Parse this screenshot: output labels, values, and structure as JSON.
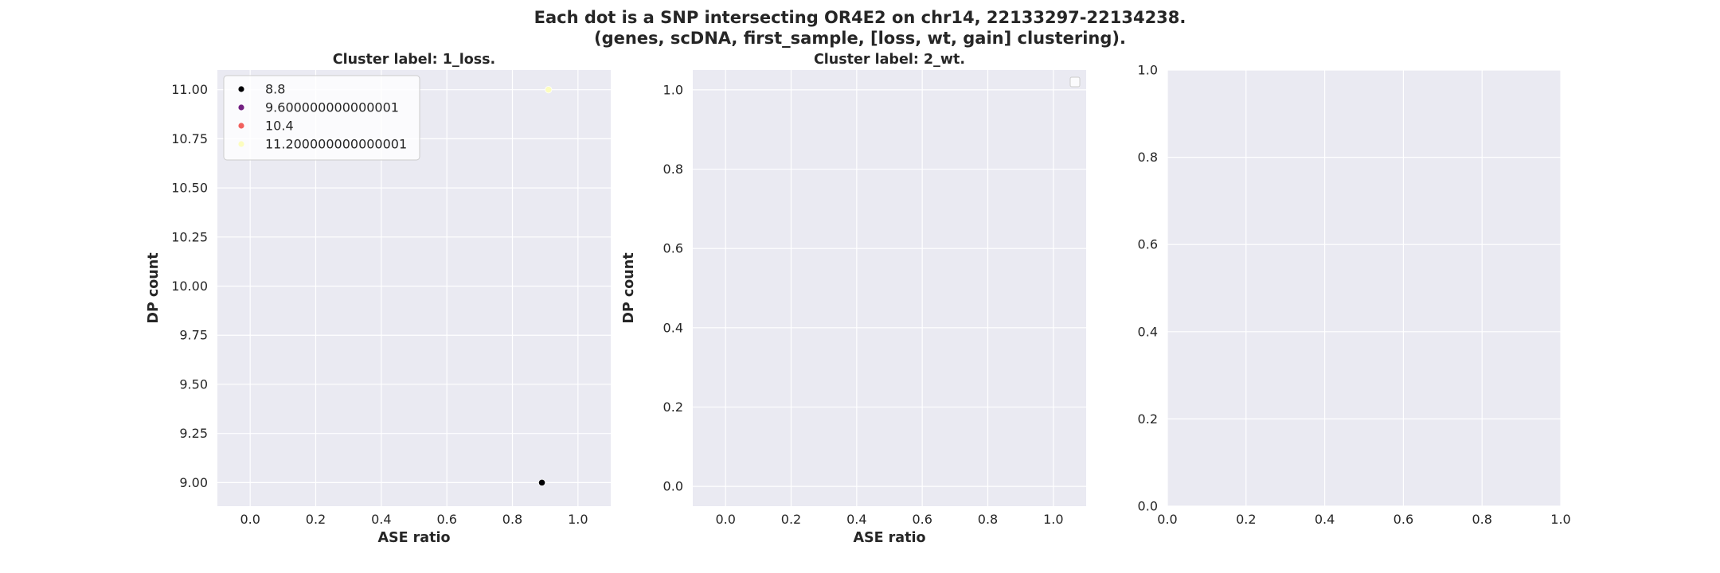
{
  "suptitle": {
    "line1": "Each dot is a SNP intersecting OR4E2 on chr14, 22133297-22134238.",
    "line2": "(genes, scDNA, first_sample, [loss, wt, gain] clustering)."
  },
  "colors": {
    "background": "#eaeaf2",
    "grid": "#ffffff",
    "text": "#262626"
  },
  "chart_data": [
    {
      "type": "scatter",
      "title": "Cluster label: 1_loss.",
      "xlabel": "ASE ratio",
      "ylabel": "DP count",
      "xlim": [
        -0.1,
        1.1
      ],
      "ylim": [
        8.88,
        11.1
      ],
      "xticks": [
        "0.0",
        "0.2",
        "0.4",
        "0.6",
        "0.8",
        "1.0"
      ],
      "yticks": [
        "9.00",
        "9.25",
        "9.50",
        "9.75",
        "10.00",
        "10.25",
        "10.50",
        "10.75",
        "11.00"
      ],
      "grid": true,
      "legend": {
        "placement": "upper left",
        "entries": [
          {
            "label": "8.8",
            "color": "#000004"
          },
          {
            "label": "9.600000000000001",
            "color": "#721f81"
          },
          {
            "label": "10.4",
            "color": "#f1605d"
          },
          {
            "label": "11.200000000000001",
            "color": "#fcfdbf"
          }
        ]
      },
      "series": [
        {
          "points": [
            {
              "x": 0.89,
              "y": 9.0,
              "color": "#000004"
            },
            {
              "x": 0.91,
              "y": 11.0,
              "color": "#fcfdbf"
            }
          ]
        }
      ]
    },
    {
      "type": "scatter",
      "title": "Cluster label: 2_wt.",
      "xlabel": "ASE ratio",
      "ylabel": "DP count",
      "xlim": [
        -0.1,
        1.1
      ],
      "ylim": [
        -0.05,
        1.05
      ],
      "xticks": [
        "0.0",
        "0.2",
        "0.4",
        "0.6",
        "0.8",
        "1.0"
      ],
      "yticks": [
        "0.0",
        "0.2",
        "0.4",
        "0.6",
        "0.8",
        "1.0"
      ],
      "grid": true,
      "legend": {
        "placement": "upper right",
        "entries": []
      },
      "series": []
    },
    {
      "type": "scatter",
      "title": "",
      "xlabel": "",
      "ylabel": "",
      "xlim": [
        0,
        1
      ],
      "ylim": [
        0,
        1
      ],
      "xticks": [
        "0.0",
        "0.2",
        "0.4",
        "0.6",
        "0.8",
        "1.0"
      ],
      "yticks": [
        "0.0",
        "0.2",
        "0.4",
        "0.6",
        "0.8",
        "1.0"
      ],
      "grid": true,
      "series": []
    }
  ]
}
